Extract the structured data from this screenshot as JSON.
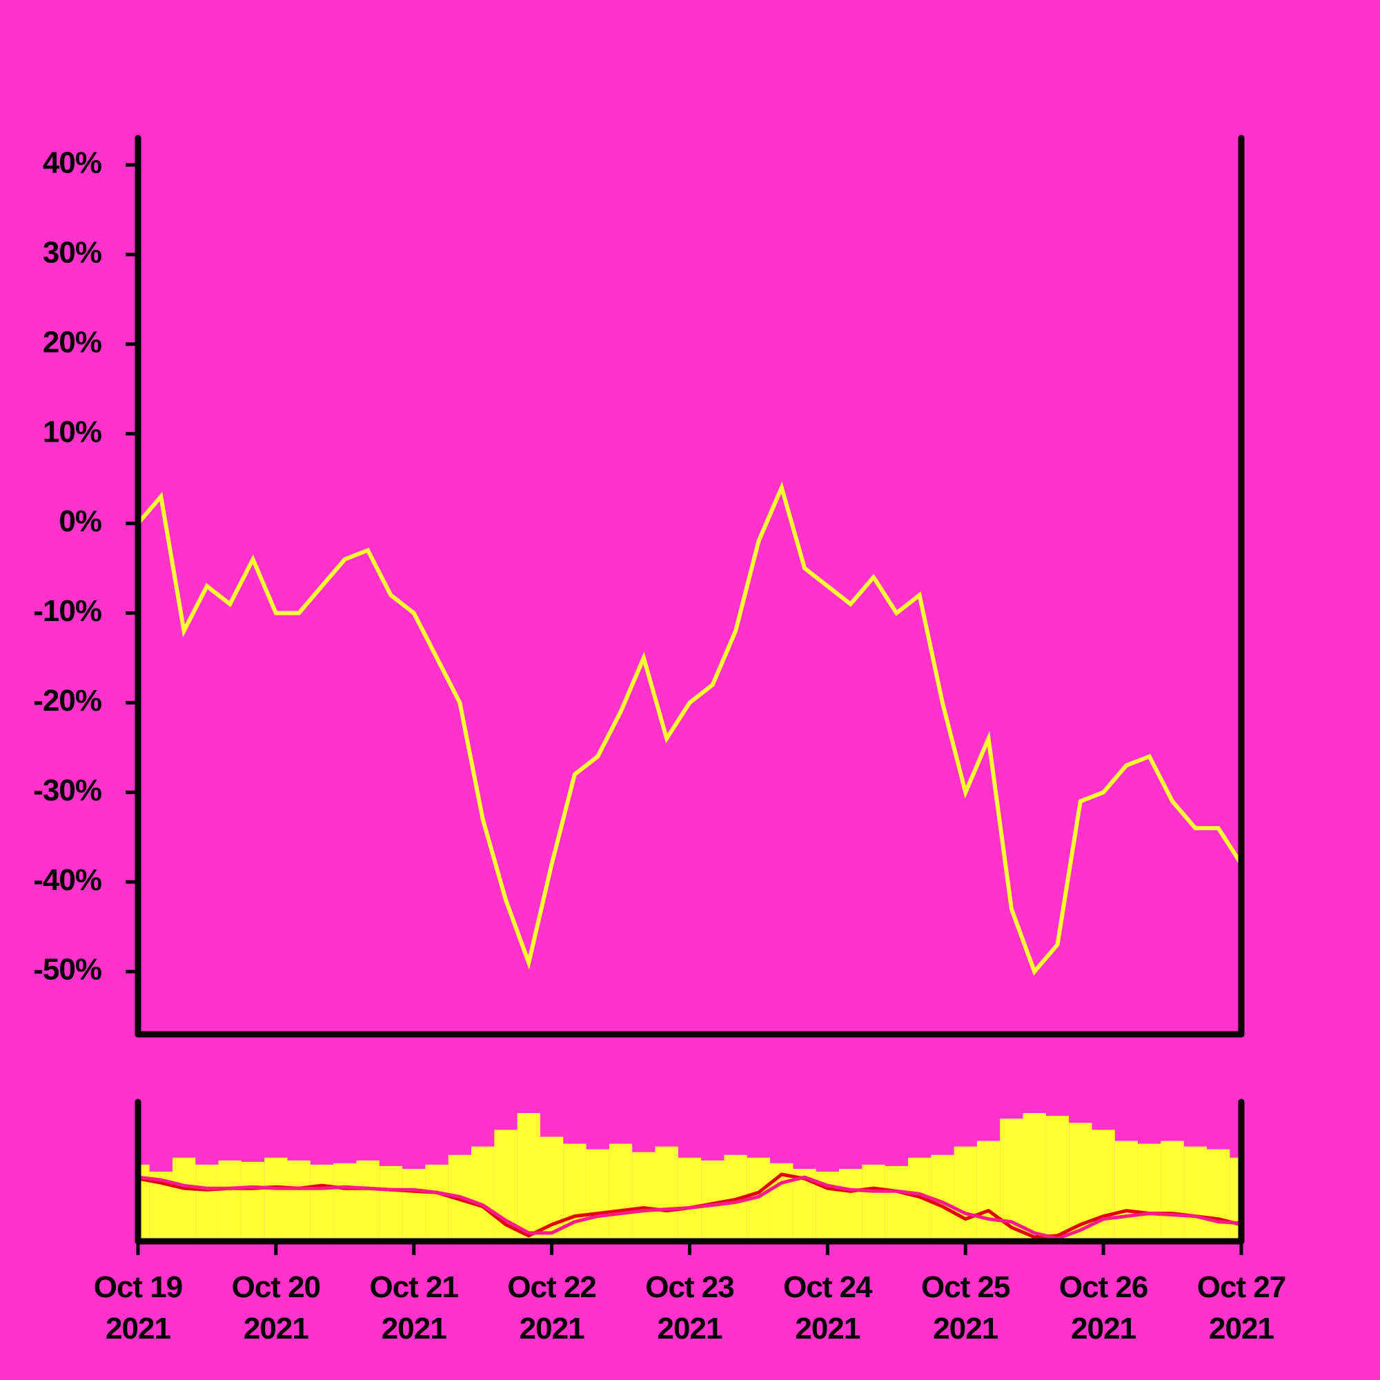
{
  "chart_data": [
    {
      "type": "line",
      "x": [
        "2021-10-19T00:00",
        "2021-10-19T04:00",
        "2021-10-19T08:00",
        "2021-10-19T12:00",
        "2021-10-19T16:00",
        "2021-10-19T20:00",
        "2021-10-20T00:00",
        "2021-10-20T04:00",
        "2021-10-20T08:00",
        "2021-10-20T12:00",
        "2021-10-20T16:00",
        "2021-10-20T20:00",
        "2021-10-21T00:00",
        "2021-10-21T04:00",
        "2021-10-21T08:00",
        "2021-10-21T12:00",
        "2021-10-21T16:00",
        "2021-10-21T20:00",
        "2021-10-22T00:00",
        "2021-10-22T04:00",
        "2021-10-22T08:00",
        "2021-10-22T12:00",
        "2021-10-22T16:00",
        "2021-10-22T20:00",
        "2021-10-23T00:00",
        "2021-10-23T04:00",
        "2021-10-23T08:00",
        "2021-10-23T12:00",
        "2021-10-23T16:00",
        "2021-10-23T20:00",
        "2021-10-24T00:00",
        "2021-10-24T04:00",
        "2021-10-24T08:00",
        "2021-10-24T12:00",
        "2021-10-24T16:00",
        "2021-10-24T20:00",
        "2021-10-25T00:00",
        "2021-10-25T04:00",
        "2021-10-25T08:00",
        "2021-10-25T12:00",
        "2021-10-25T16:00",
        "2021-10-25T20:00",
        "2021-10-26T00:00",
        "2021-10-26T04:00",
        "2021-10-26T08:00",
        "2021-10-26T12:00",
        "2021-10-26T16:00",
        "2021-10-26T20:00",
        "2021-10-27T00:00"
      ],
      "series": [
        {
          "color": "#ffff33",
          "values": [
            0,
            3,
            -12,
            -7,
            -9,
            -4,
            -10,
            -10,
            -7,
            -4,
            -3,
            -8,
            -10,
            -15,
            -20,
            -33,
            -42,
            -49,
            -38,
            -28,
            -26,
            -21,
            -15,
            -24,
            -20,
            -18,
            -12,
            -2,
            4,
            -5,
            -7,
            -9,
            -6,
            -10,
            -8,
            -20,
            -30,
            -24,
            -43,
            -50,
            -47,
            -31,
            -30,
            -27,
            -26,
            -31,
            -34,
            -34,
            -38
          ]
        }
      ],
      "xlim": [
        "2021-10-19T00:00",
        "2021-10-27T00:00"
      ],
      "ylim": [
        -57,
        43
      ],
      "yticks": [
        {
          "value": -50,
          "label": "-50%"
        },
        {
          "value": -40,
          "label": "-40%"
        },
        {
          "value": -30,
          "label": "-30%"
        },
        {
          "value": -20,
          "label": "-20%"
        },
        {
          "value": -10,
          "label": "-10%"
        },
        {
          "value": 0,
          "label": "0%"
        },
        {
          "value": 10,
          "label": "10%"
        },
        {
          "value": 20,
          "label": "20%"
        },
        {
          "value": 30,
          "label": "30%"
        },
        {
          "value": 40,
          "label": "40%"
        }
      ]
    },
    {
      "type": "bar",
      "x": [
        "2021-10-19T00:00",
        "2021-10-19T04:00",
        "2021-10-19T08:00",
        "2021-10-19T12:00",
        "2021-10-19T16:00",
        "2021-10-19T20:00",
        "2021-10-20T00:00",
        "2021-10-20T04:00",
        "2021-10-20T08:00",
        "2021-10-20T12:00",
        "2021-10-20T16:00",
        "2021-10-20T20:00",
        "2021-10-21T00:00",
        "2021-10-21T04:00",
        "2021-10-21T08:00",
        "2021-10-21T12:00",
        "2021-10-21T16:00",
        "2021-10-21T20:00",
        "2021-10-22T00:00",
        "2021-10-22T04:00",
        "2021-10-22T08:00",
        "2021-10-22T12:00",
        "2021-10-22T16:00",
        "2021-10-22T20:00",
        "2021-10-23T00:00",
        "2021-10-23T04:00",
        "2021-10-23T08:00",
        "2021-10-23T12:00",
        "2021-10-23T16:00",
        "2021-10-23T20:00",
        "2021-10-24T00:00",
        "2021-10-24T04:00",
        "2021-10-24T08:00",
        "2021-10-24T12:00",
        "2021-10-24T16:00",
        "2021-10-24T20:00",
        "2021-10-25T00:00",
        "2021-10-25T04:00",
        "2021-10-25T08:00",
        "2021-10-25T12:00",
        "2021-10-25T16:00",
        "2021-10-25T20:00",
        "2021-10-26T00:00",
        "2021-10-26T04:00",
        "2021-10-26T08:00",
        "2021-10-26T12:00",
        "2021-10-26T16:00",
        "2021-10-26T20:00",
        "2021-10-27T00:00"
      ],
      "series": [
        {
          "type": "bar",
          "color": "#ffff33",
          "values": [
            55,
            50,
            60,
            55,
            58,
            57,
            60,
            58,
            55,
            56,
            58,
            54,
            52,
            55,
            62,
            68,
            80,
            92,
            75,
            70,
            66,
            70,
            64,
            68,
            60,
            58,
            62,
            60,
            56,
            52,
            50,
            52,
            55,
            54,
            60,
            62,
            68,
            72,
            88,
            92,
            90,
            85,
            80,
            72,
            70,
            72,
            68,
            66,
            60
          ]
        },
        {
          "type": "line",
          "color": "#e00000",
          "values": [
            45,
            42,
            38,
            37,
            38,
            38,
            39,
            38,
            40,
            38,
            38,
            37,
            36,
            35,
            30,
            25,
            12,
            4,
            12,
            18,
            20,
            22,
            24,
            22,
            24,
            27,
            30,
            35,
            48,
            45,
            38,
            36,
            38,
            36,
            32,
            25,
            16,
            22,
            10,
            3,
            4,
            12,
            18,
            22,
            20,
            20,
            18,
            16,
            12
          ]
        },
        {
          "type": "line",
          "color": "#ff1a8c",
          "values": [
            46,
            44,
            40,
            38,
            38,
            39,
            38,
            38,
            38,
            39,
            38,
            37,
            37,
            35,
            32,
            26,
            15,
            6,
            6,
            14,
            18,
            20,
            22,
            23,
            24,
            26,
            28,
            32,
            42,
            46,
            40,
            37,
            36,
            36,
            34,
            28,
            20,
            16,
            14,
            6,
            2,
            8,
            16,
            18,
            20,
            19,
            18,
            14,
            13
          ]
        }
      ],
      "xlim": [
        "2021-10-19T00:00",
        "2021-10-27T00:00"
      ],
      "ylim": [
        0,
        100
      ],
      "xticks": [
        {
          "value": "2021-10-19T00:00",
          "label": "Oct 19 2021"
        },
        {
          "value": "2021-10-20T00:00",
          "label": "Oct 20 2021"
        },
        {
          "value": "2021-10-21T00:00",
          "label": "Oct 21 2021"
        },
        {
          "value": "2021-10-22T00:00",
          "label": "Oct 22 2021"
        },
        {
          "value": "2021-10-23T00:00",
          "label": "Oct 23 2021"
        },
        {
          "value": "2021-10-24T00:00",
          "label": "Oct 24 2021"
        },
        {
          "value": "2021-10-25T00:00",
          "label": "Oct 25 2021"
        },
        {
          "value": "2021-10-26T00:00",
          "label": "Oct 26 2021"
        },
        {
          "value": "2021-10-27T00:00",
          "label": "Oct 27 2021"
        }
      ]
    }
  ]
}
